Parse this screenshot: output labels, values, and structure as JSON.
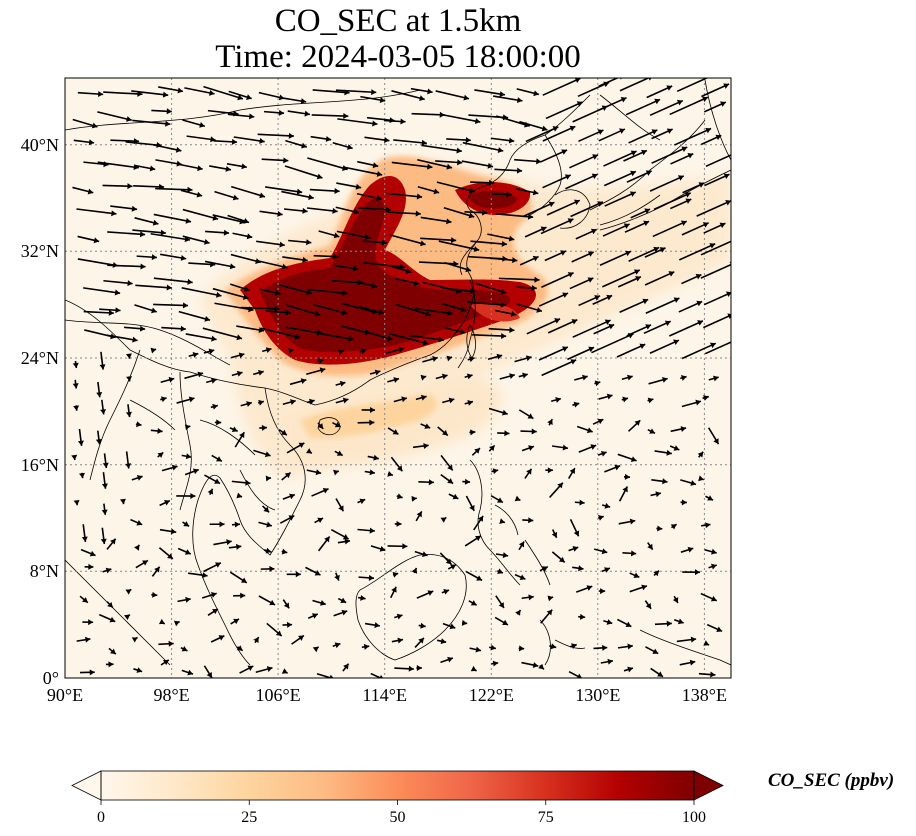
{
  "title": "CO_SEC at 1.5km",
  "subtitle": "Time: 2024-03-05 18:00:00",
  "map": {
    "lon_ticks": [
      "90°E",
      "98°E",
      "106°E",
      "114°E",
      "122°E",
      "130°E",
      "138°E"
    ],
    "lat_ticks": [
      "0°",
      "8°N",
      "16°N",
      "24°N",
      "32°N",
      "40°N"
    ],
    "lon_range": [
      90,
      140
    ],
    "lat_range": [
      0,
      45
    ],
    "gridlines": true,
    "land_color": "#fdf5e8",
    "border_color": "#000000"
  },
  "colorbar": {
    "label": "CO_SEC (ppbv)",
    "ticks": [
      "0",
      "25",
      "50",
      "75",
      "100"
    ],
    "range": [
      0,
      100
    ],
    "colormap": "OrRd",
    "colors": [
      "#fff7ec",
      "#fee8c8",
      "#fdd49e",
      "#fdbb84",
      "#fc8d59",
      "#ef6548",
      "#d7301f",
      "#b30000",
      "#7f0000"
    ],
    "extend": "both"
  }
}
